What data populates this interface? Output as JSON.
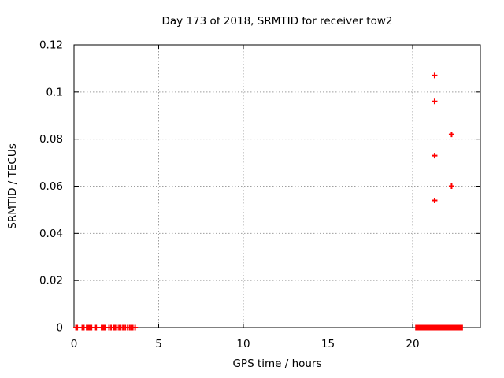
{
  "window": {
    "background": "#ffffff"
  },
  "chart_data": {
    "type": "scatter",
    "title": "Day 173 of 2018, SRMTID for receiver tow2",
    "xlabel": "GPS time / hours",
    "ylabel": "SRMTID / TECUs",
    "xlim": [
      0,
      24
    ],
    "ylim": [
      0,
      0.12
    ],
    "xticks": [
      {
        "value": 0,
        "label": "0"
      },
      {
        "value": 5,
        "label": "5"
      },
      {
        "value": 10,
        "label": "10"
      },
      {
        "value": 15,
        "label": "15"
      },
      {
        "value": 20,
        "label": "20"
      }
    ],
    "yticks": [
      {
        "value": 0,
        "label": "0"
      },
      {
        "value": 0.02,
        "label": "0.02"
      },
      {
        "value": 0.04,
        "label": "0.04"
      },
      {
        "value": 0.06,
        "label": "0.06"
      },
      {
        "value": 0.08,
        "label": "0.08"
      },
      {
        "value": 0.1,
        "label": "0.1"
      },
      {
        "value": 0.12,
        "label": "0.12"
      }
    ],
    "grid": true,
    "grid_style": "dotted",
    "legend": "none",
    "marker": {
      "shape": "plus",
      "size": 7,
      "stroke_width": 2
    },
    "colors": {
      "marker": "#ff0000",
      "axis": "#000000",
      "grid": "#9e9e9e",
      "background": "#ffffff"
    },
    "series": [
      {
        "name": "SRMTID",
        "color": "#ff0000",
        "points": [
          [
            0.12,
            0
          ],
          [
            0.19,
            0
          ],
          [
            0.49,
            0
          ],
          [
            0.58,
            0
          ],
          [
            0.75,
            0
          ],
          [
            0.82,
            0
          ],
          [
            0.89,
            0
          ],
          [
            0.96,
            0
          ],
          [
            1.03,
            0
          ],
          [
            1.24,
            0
          ],
          [
            1.31,
            0
          ],
          [
            1.63,
            0
          ],
          [
            1.7,
            0
          ],
          [
            1.77,
            0
          ],
          [
            1.84,
            0
          ],
          [
            2.07,
            0
          ],
          [
            2.19,
            0
          ],
          [
            2.33,
            0
          ],
          [
            2.42,
            0
          ],
          [
            2.53,
            0
          ],
          [
            2.66,
            0
          ],
          [
            2.76,
            0
          ],
          [
            2.89,
            0
          ],
          [
            3.03,
            0
          ],
          [
            3.17,
            0
          ],
          [
            3.29,
            0
          ],
          [
            3.38,
            0
          ],
          [
            3.47,
            0
          ],
          [
            3.61,
            0
          ],
          [
            21.3,
            0.054
          ],
          [
            21.3,
            0.073
          ],
          [
            21.3,
            0.096
          ],
          [
            21.3,
            0.107
          ],
          [
            22.3,
            0.06
          ],
          [
            22.3,
            0.082
          ]
        ],
        "dense_band": {
          "x_start": 20.15,
          "x_end": 22.97,
          "y": 0,
          "note": "continuous run of overlapping + markers at y = 0"
        }
      }
    ]
  }
}
